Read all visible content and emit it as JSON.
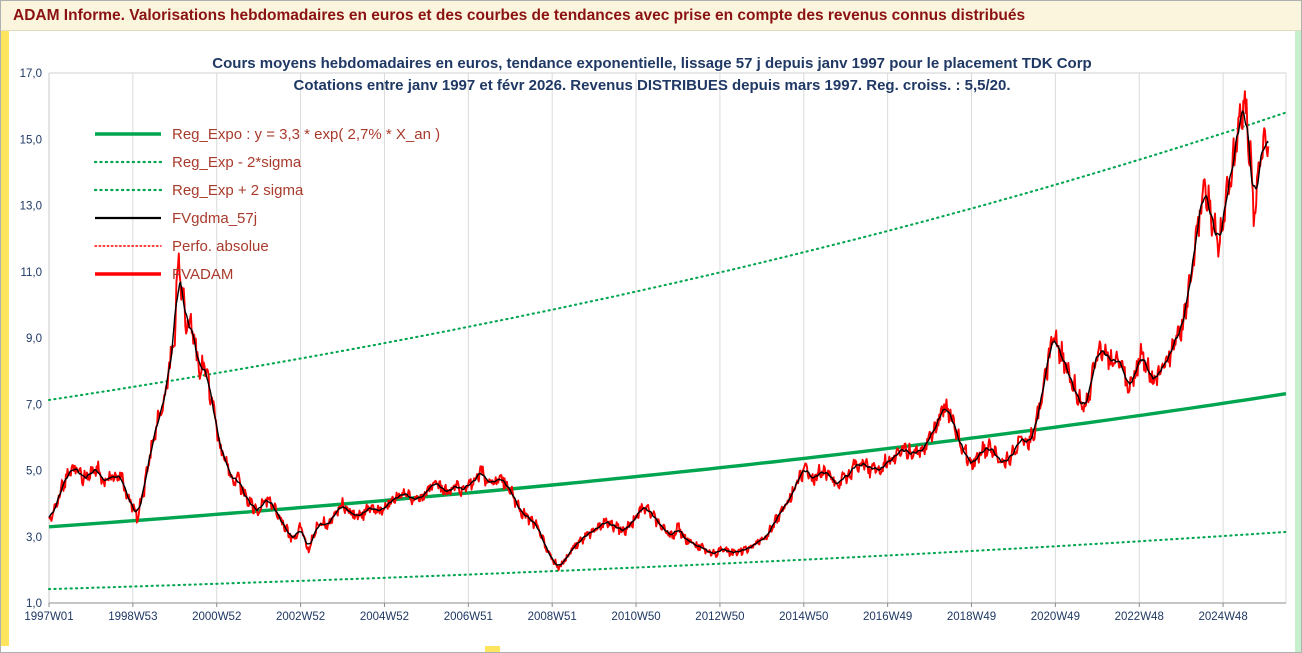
{
  "header": {
    "title": "ADAM Informe. Valorisations hebdomadaires en euros et des courbes de tendances avec prise en compte des revenus connus distribués"
  },
  "chart": {
    "title_line1": "Cours moyens hebdomadaires en euros, tendance exponentielle, lissage 57 j depuis janv 1997  pour le placement TDK Corp",
    "title_line2": "Cotations entre janv 1997 et févr 2026. Revenus DISTRIBUES depuis mars 1997. Reg. croiss. : 5,5/20."
  },
  "legend": {
    "items": [
      {
        "label": "Reg_Expo : y = 3,3 * exp( 2,7% *  X_an )",
        "color": "#00A550",
        "style": "solid-thick"
      },
      {
        "label": "Reg_Exp - 2*sigma",
        "color": "#00A550",
        "style": "dotted"
      },
      {
        "label": "Reg_Exp + 2 sigma",
        "color": "#00A550",
        "style": "dotted"
      },
      {
        "label": "FVgdma_57j",
        "color": "#000000",
        "style": "solid"
      },
      {
        "label": "Perfo. absolue",
        "color": "#FF0000",
        "style": "dotted-thin"
      },
      {
        "label": "FVADAM",
        "color": "#FF0000",
        "style": "solid-thick"
      }
    ]
  },
  "colors": {
    "green_trend": "#00A550",
    "red_series": "#FF0000",
    "black_series": "#000000",
    "title_navy": "#1F3864",
    "header_maroon": "#8B1212",
    "legend_text": "#A93B2C",
    "left_strip_yellow": "#FFE45E",
    "right_strip_green": "#C6EFCE",
    "gridline": "#DADADA"
  },
  "chart_data": {
    "type": "line",
    "title": "Cours moyens hebdomadaires en euros, tendance exponentielle, lissage 57 j depuis janv 1997 pour le placement TDK Corp",
    "subtitle": "Cotations entre janv 1997 et févr 2026. Revenus DISTRIBUES depuis mars 1997. Reg. croiss. : 5,5/20.",
    "xlabel": "",
    "ylabel": "",
    "grid": "vertical-only",
    "legend_position": "upper-left",
    "x_range": [
      1997.0,
      2026.5
    ],
    "y_range": [
      1.0,
      17.0
    ],
    "data_end_x": 2026.08,
    "x_ticks": [
      {
        "year": 1997,
        "label": "1997W01"
      },
      {
        "year": 1999,
        "label": "1998W53"
      },
      {
        "year": 2001,
        "label": "2000W52"
      },
      {
        "year": 2003,
        "label": "2002W52"
      },
      {
        "year": 2005,
        "label": "2004W52"
      },
      {
        "year": 2007,
        "label": "2006W51"
      },
      {
        "year": 2009,
        "label": "2008W51"
      },
      {
        "year": 2011,
        "label": "2010W50"
      },
      {
        "year": 2013,
        "label": "2012W50"
      },
      {
        "year": 2015,
        "label": "2014W50"
      },
      {
        "year": 2017,
        "label": "2016W49"
      },
      {
        "year": 2019,
        "label": "2018W49"
      },
      {
        "year": 2021,
        "label": "2020W49"
      },
      {
        "year": 2023,
        "label": "2022W48"
      },
      {
        "year": 2025,
        "label": "2024W48"
      }
    ],
    "y_ticks": [
      {
        "value": 1,
        "label": "1,0"
      },
      {
        "value": 3,
        "label": "3,0"
      },
      {
        "value": 5,
        "label": "5,0"
      },
      {
        "value": 7,
        "label": "7,0"
      },
      {
        "value": 9,
        "label": "9,0"
      },
      {
        "value": 11,
        "label": "11,0"
      },
      {
        "value": 13,
        "label": "13,0"
      },
      {
        "value": 15,
        "label": "15,0"
      },
      {
        "value": 17,
        "label": "17,0"
      }
    ],
    "regression": {
      "formula": "y = 3,3 * exp( 2,7% * X_an )",
      "a": 3.3,
      "rate": 0.027,
      "x0": 1997.0,
      "upper_factor": 2.16,
      "lower_factor": 0.43,
      "color": "#00A550"
    },
    "series": [
      {
        "name": "FVADAM",
        "color": "#FF0000",
        "style": "solid-thick",
        "anchors": [
          [
            1997.0,
            3.4
          ],
          [
            1997.15,
            3.9
          ],
          [
            1997.3,
            4.5
          ],
          [
            1997.5,
            4.9
          ],
          [
            1997.65,
            5.1
          ],
          [
            1997.8,
            4.8
          ],
          [
            1998.0,
            4.9
          ],
          [
            1998.15,
            5.1
          ],
          [
            1998.3,
            4.6
          ],
          [
            1998.5,
            4.8
          ],
          [
            1998.7,
            4.9
          ],
          [
            1998.85,
            4.3
          ],
          [
            1999.0,
            3.9
          ],
          [
            1999.1,
            3.6
          ],
          [
            1999.25,
            4.3
          ],
          [
            1999.4,
            5.5
          ],
          [
            1999.55,
            6.3
          ],
          [
            1999.7,
            7.0
          ],
          [
            1999.8,
            7.6
          ],
          [
            1999.9,
            8.3
          ],
          [
            2000.0,
            9.2
          ],
          [
            2000.08,
            11.4
          ],
          [
            2000.18,
            10.3
          ],
          [
            2000.3,
            9.3
          ],
          [
            2000.4,
            9.6
          ],
          [
            2000.5,
            8.6
          ],
          [
            2000.6,
            8.0
          ],
          [
            2000.7,
            8.3
          ],
          [
            2000.8,
            7.6
          ],
          [
            2000.9,
            7.0
          ],
          [
            2001.0,
            6.3
          ],
          [
            2001.1,
            5.6
          ],
          [
            2001.25,
            5.2
          ],
          [
            2001.4,
            4.6
          ],
          [
            2001.5,
            4.9
          ],
          [
            2001.6,
            4.4
          ],
          [
            2001.75,
            4.1
          ],
          [
            2001.9,
            3.9
          ],
          [
            2002.0,
            3.7
          ],
          [
            2002.1,
            4.0
          ],
          [
            2002.25,
            4.1
          ],
          [
            2002.4,
            3.8
          ],
          [
            2002.55,
            3.5
          ],
          [
            2002.7,
            3.1
          ],
          [
            2002.85,
            2.9
          ],
          [
            2003.0,
            3.3
          ],
          [
            2003.1,
            2.9
          ],
          [
            2003.2,
            2.6
          ],
          [
            2003.35,
            3.2
          ],
          [
            2003.5,
            3.5
          ],
          [
            2003.65,
            3.3
          ],
          [
            2003.8,
            3.6
          ],
          [
            2004.0,
            4.0
          ],
          [
            2004.15,
            3.8
          ],
          [
            2004.3,
            3.6
          ],
          [
            2004.5,
            3.7
          ],
          [
            2004.7,
            3.9
          ],
          [
            2004.9,
            3.8
          ],
          [
            2005.1,
            4.0
          ],
          [
            2005.3,
            4.2
          ],
          [
            2005.5,
            4.3
          ],
          [
            2005.7,
            4.1
          ],
          [
            2005.9,
            4.2
          ],
          [
            2006.1,
            4.5
          ],
          [
            2006.25,
            4.6
          ],
          [
            2006.4,
            4.4
          ],
          [
            2006.55,
            4.3
          ],
          [
            2006.7,
            4.5
          ],
          [
            2006.9,
            4.4
          ],
          [
            2007.1,
            4.6
          ],
          [
            2007.3,
            5.0
          ],
          [
            2007.45,
            4.7
          ],
          [
            2007.6,
            4.6
          ],
          [
            2007.8,
            4.8
          ],
          [
            2008.0,
            4.4
          ],
          [
            2008.2,
            3.9
          ],
          [
            2008.4,
            3.6
          ],
          [
            2008.6,
            3.4
          ],
          [
            2008.75,
            3.0
          ],
          [
            2008.9,
            2.5
          ],
          [
            2009.05,
            2.2
          ],
          [
            2009.2,
            2.1
          ],
          [
            2009.35,
            2.4
          ],
          [
            2009.5,
            2.7
          ],
          [
            2009.7,
            2.9
          ],
          [
            2009.9,
            3.1
          ],
          [
            2010.1,
            3.3
          ],
          [
            2010.3,
            3.5
          ],
          [
            2010.5,
            3.3
          ],
          [
            2010.7,
            3.2
          ],
          [
            2010.9,
            3.4
          ],
          [
            2011.05,
            3.7
          ],
          [
            2011.2,
            3.9
          ],
          [
            2011.35,
            3.7
          ],
          [
            2011.5,
            3.5
          ],
          [
            2011.7,
            3.2
          ],
          [
            2011.85,
            3.0
          ],
          [
            2012.0,
            3.3
          ],
          [
            2012.15,
            3.0
          ],
          [
            2012.3,
            2.8
          ],
          [
            2012.5,
            2.7
          ],
          [
            2012.7,
            2.6
          ],
          [
            2012.9,
            2.5
          ],
          [
            2013.1,
            2.6
          ],
          [
            2013.3,
            2.5
          ],
          [
            2013.5,
            2.6
          ],
          [
            2013.7,
            2.7
          ],
          [
            2013.9,
            2.8
          ],
          [
            2014.1,
            3.0
          ],
          [
            2014.3,
            3.4
          ],
          [
            2014.5,
            3.8
          ],
          [
            2014.7,
            4.3
          ],
          [
            2014.9,
            4.8
          ],
          [
            2015.05,
            5.1
          ],
          [
            2015.2,
            4.7
          ],
          [
            2015.4,
            5.0
          ],
          [
            2015.6,
            4.9
          ],
          [
            2015.8,
            4.6
          ],
          [
            2016.0,
            4.8
          ],
          [
            2016.2,
            5.1
          ],
          [
            2016.4,
            5.3
          ],
          [
            2016.6,
            5.0
          ],
          [
            2016.8,
            5.0
          ],
          [
            2017.0,
            5.3
          ],
          [
            2017.2,
            5.5
          ],
          [
            2017.4,
            5.7
          ],
          [
            2017.6,
            5.4
          ],
          [
            2017.8,
            5.6
          ],
          [
            2018.0,
            6.0
          ],
          [
            2018.2,
            6.5
          ],
          [
            2018.4,
            7.0
          ],
          [
            2018.55,
            6.5
          ],
          [
            2018.7,
            6.0
          ],
          [
            2018.85,
            5.6
          ],
          [
            2019.0,
            5.2
          ],
          [
            2019.2,
            5.5
          ],
          [
            2019.4,
            5.7
          ],
          [
            2019.6,
            5.4
          ],
          [
            2019.8,
            5.2
          ],
          [
            2020.0,
            5.6
          ],
          [
            2020.15,
            6.0
          ],
          [
            2020.3,
            5.7
          ],
          [
            2020.5,
            6.2
          ],
          [
            2020.65,
            7.0
          ],
          [
            2020.8,
            8.1
          ],
          [
            2020.95,
            9.1
          ],
          [
            2021.1,
            8.6
          ],
          [
            2021.25,
            8.2
          ],
          [
            2021.4,
            7.7
          ],
          [
            2021.55,
            7.2
          ],
          [
            2021.7,
            7.0
          ],
          [
            2021.85,
            7.6
          ],
          [
            2022.0,
            8.4
          ],
          [
            2022.15,
            8.7
          ],
          [
            2022.3,
            8.3
          ],
          [
            2022.45,
            8.6
          ],
          [
            2022.6,
            8.1
          ],
          [
            2022.75,
            7.5
          ],
          [
            2022.9,
            7.9
          ],
          [
            2023.05,
            8.6
          ],
          [
            2023.2,
            8.1
          ],
          [
            2023.35,
            7.7
          ],
          [
            2023.5,
            8.0
          ],
          [
            2023.65,
            8.4
          ],
          [
            2023.8,
            8.6
          ],
          [
            2023.95,
            9.0
          ],
          [
            2024.1,
            9.8
          ],
          [
            2024.25,
            11.0
          ],
          [
            2024.4,
            12.3
          ],
          [
            2024.55,
            13.6
          ],
          [
            2024.65,
            13.1
          ],
          [
            2024.75,
            12.5
          ],
          [
            2024.9,
            11.9
          ],
          [
            2025.0,
            12.6
          ],
          [
            2025.1,
            13.4
          ],
          [
            2025.2,
            14.2
          ],
          [
            2025.3,
            14.8
          ],
          [
            2025.4,
            15.5
          ],
          [
            2025.5,
            16.2
          ],
          [
            2025.58,
            15.4
          ],
          [
            2025.65,
            14.5
          ],
          [
            2025.72,
            12.8
          ],
          [
            2025.8,
            13.4
          ],
          [
            2025.9,
            14.3
          ],
          [
            2026.0,
            14.9
          ],
          [
            2026.08,
            14.8
          ]
        ]
      },
      {
        "name": "FVgdma_57j",
        "color": "#000000",
        "style": "solid",
        "derived": "moving_average_57j_of_FVADAM"
      },
      {
        "name": "Perfo. absolue",
        "color": "#FF0000",
        "style": "dotted-thin",
        "derived": "same_path_as_FVADAM"
      }
    ]
  }
}
